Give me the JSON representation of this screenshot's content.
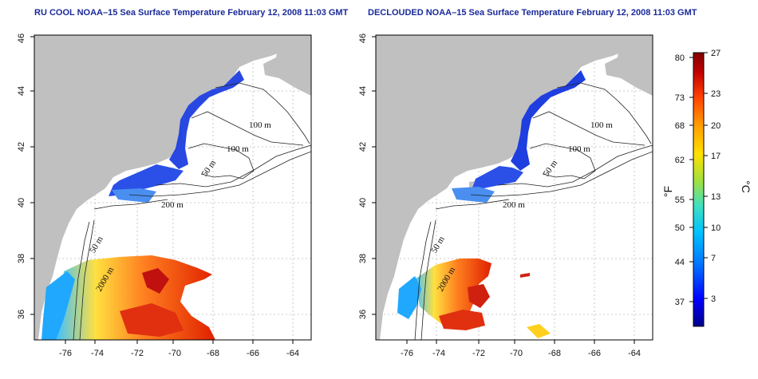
{
  "panels": [
    {
      "title": "RU COOL NOAA–15 Sea Surface Temperature February 12, 2008 11:03 GMT",
      "x_ticks": [
        "-76",
        "-74",
        "-72",
        "-70",
        "-68",
        "-66",
        "-64"
      ],
      "y_ticks": [
        "36",
        "38",
        "40",
        "42",
        "44",
        "46"
      ],
      "contour_labels": [
        "100 m",
        "100 m",
        "50 m",
        "200 m",
        "50 m",
        "2000 m"
      ]
    },
    {
      "title": "DECLOUDED NOAA–15 Sea Surface Temperature February 12, 2008 11:03 GMT",
      "x_ticks": [
        "-76",
        "-74",
        "-72",
        "-70",
        "-68",
        "-66",
        "-64"
      ],
      "y_ticks": [
        "36",
        "38",
        "40",
        "42",
        "44",
        "46"
      ],
      "contour_labels": [
        "100 m",
        "100 m",
        "50 m",
        "200 m",
        "50 m",
        "2000 m"
      ]
    }
  ],
  "colorbar": {
    "fahrenheit_label": "°F",
    "celsius_label": "°C",
    "fahrenheit_ticks": [
      "80",
      "73",
      "68",
      "62",
      "55",
      "50",
      "44",
      "37"
    ],
    "celsius_ticks": [
      "27",
      "23",
      "20",
      "17",
      "13",
      "10",
      "7",
      "3"
    ],
    "colors": [
      "#00008b",
      "#0000ff",
      "#0070ff",
      "#00c0ff",
      "#40e0c0",
      "#a0e040",
      "#ffe000",
      "#ffa000",
      "#ff4000",
      "#c00000",
      "#800000"
    ]
  },
  "colors": {
    "land": "#c0c0c0",
    "water_background": "#ffffff",
    "title": "#1a2a9a"
  }
}
